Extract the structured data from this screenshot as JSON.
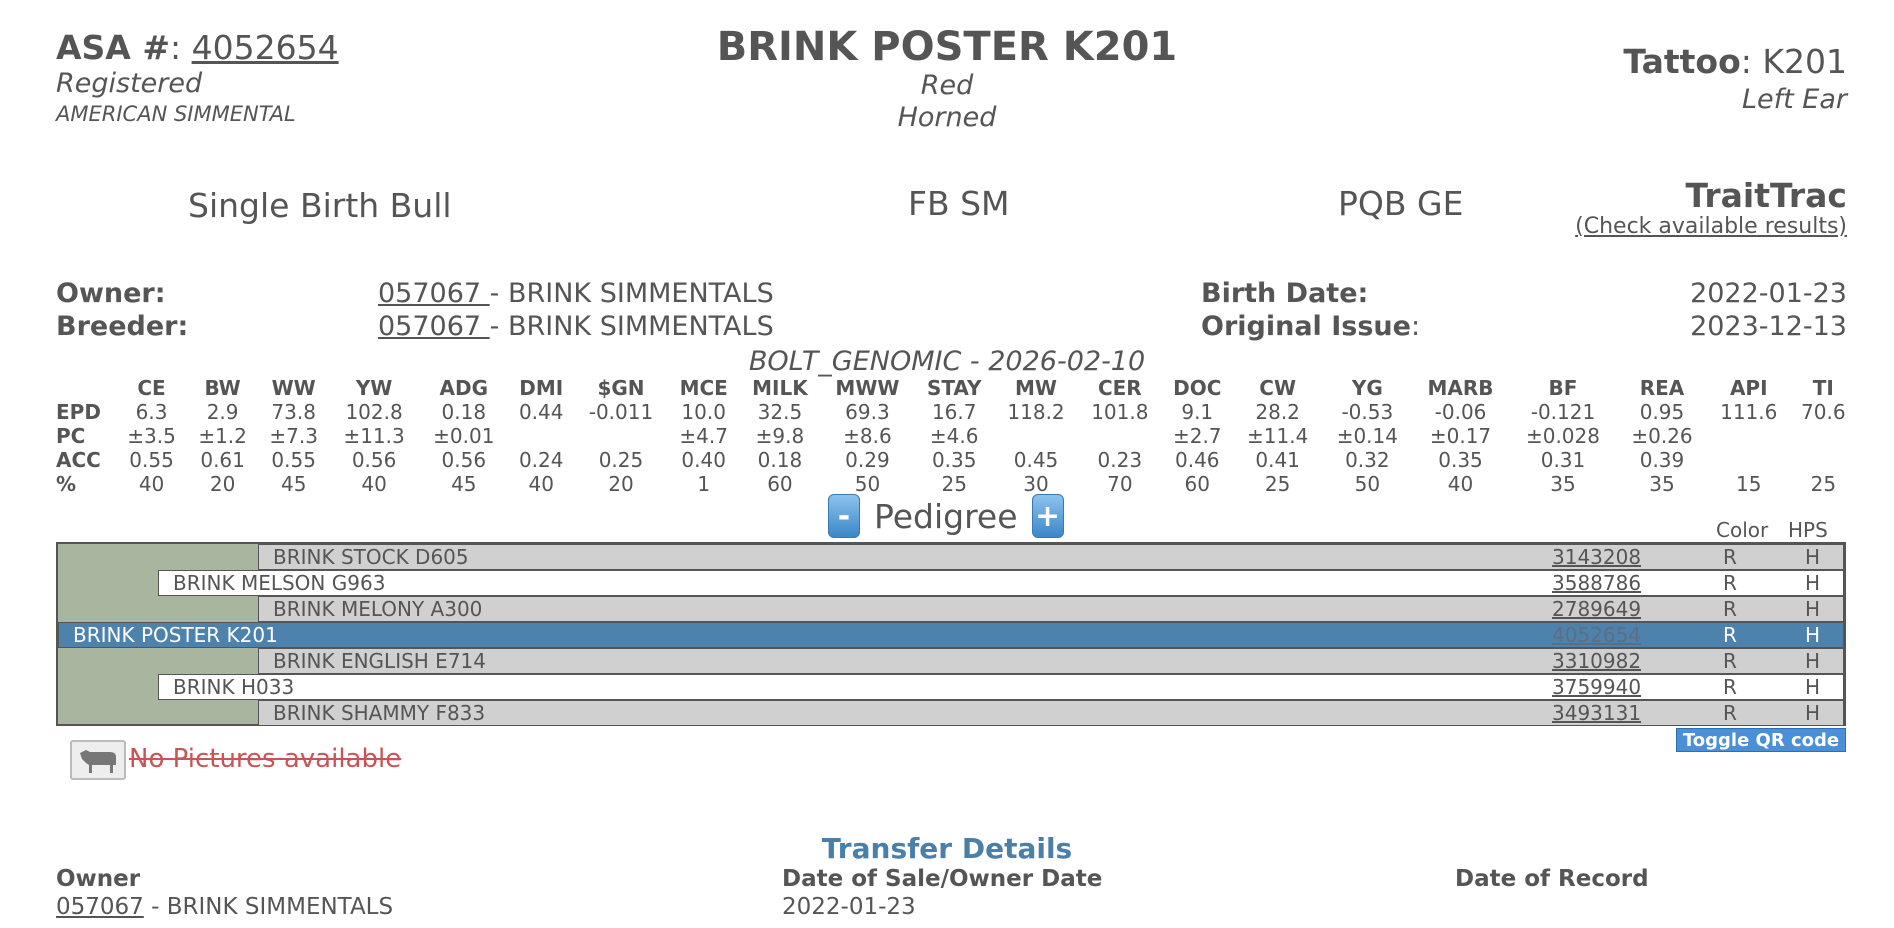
{
  "header": {
    "asa_label": "ASA #",
    "asa_colon": ":",
    "asa_number": "4052654",
    "status": "Registered",
    "breed": "AMERICAN SIMMENTAL",
    "animal_name": "BRINK POSTER K201",
    "color": "Red",
    "horn_status": "Horned",
    "tattoo_label": "Tattoo",
    "tattoo_value": ": K201",
    "tattoo_location": "Left Ear"
  },
  "summary": {
    "birth_type": "Single Birth Bull",
    "breed_code": "FB SM",
    "genomic": "PQB GE",
    "traittrac_title": "TraitTrac",
    "traittrac_link": "(Check available results)"
  },
  "parties": {
    "owner_label": "Owner:",
    "owner_id": "057067 ",
    "owner_name": "- BRINK SIMMENTALS",
    "breeder_label": "Breeder:",
    "breeder_id": "057067 ",
    "breeder_name": "- BRINK SIMMENTALS",
    "birth_date_label": "Birth Date:",
    "birth_date": "2022-01-23",
    "original_issue_label": "Original Issue",
    "original_issue_colon": ":",
    "original_issue": "2023-12-13"
  },
  "evaluation": "BOLT_GENOMIC - 2026-02-10",
  "epd_table": {
    "columns": [
      "CE",
      "BW",
      "WW",
      "YW",
      "ADG",
      "DMI",
      "$GN",
      "MCE",
      "MILK",
      "MWW",
      "STAY",
      "MW",
      "CER",
      "DOC",
      "CW",
      "YG",
      "MARB",
      "BF",
      "REA",
      "API",
      "TI"
    ],
    "rows": [
      {
        "label": "EPD",
        "values": [
          "6.3",
          "2.9",
          "73.8",
          "102.8",
          "0.18",
          "0.44",
          "-0.011",
          "10.0",
          "32.5",
          "69.3",
          "16.7",
          "118.2",
          "101.8",
          "9.1",
          "28.2",
          "-0.53",
          "-0.06",
          "-0.121",
          "0.95",
          "111.6",
          "70.6"
        ]
      },
      {
        "label": "PC",
        "values": [
          "±3.5",
          "±1.2",
          "±7.3",
          "±11.3",
          "±0.01",
          "",
          "",
          "±4.7",
          "±9.8",
          "±8.6",
          "±4.6",
          "",
          "",
          "±2.7",
          "±11.4",
          "±0.14",
          "±0.17",
          "±0.028",
          "±0.26",
          "",
          ""
        ]
      },
      {
        "label": "ACC",
        "values": [
          "0.55",
          "0.61",
          "0.55",
          "0.56",
          "0.56",
          "0.24",
          "0.25",
          "0.40",
          "0.18",
          "0.29",
          "0.35",
          "0.45",
          "0.23",
          "0.46",
          "0.41",
          "0.32",
          "0.35",
          "0.31",
          "0.39",
          "",
          ""
        ]
      },
      {
        "label": "%",
        "values": [
          "40",
          "20",
          "45",
          "40",
          "45",
          "40",
          "20",
          "1",
          "60",
          "50",
          "25",
          "30",
          "70",
          "60",
          "25",
          "50",
          "40",
          "35",
          "35",
          "15",
          "25"
        ]
      }
    ]
  },
  "pedigree": {
    "minus_label": "-",
    "title": "Pedigree",
    "plus_label": "+",
    "color_header": "Color",
    "hps_header": "HPS",
    "rows": [
      {
        "name": "BRINK STOCK D605",
        "reg": "3143208",
        "color": "R",
        "hps": "H"
      },
      {
        "name": "BRINK MELSON G963",
        "reg": "3588786",
        "color": "R",
        "hps": "H"
      },
      {
        "name": "BRINK MELONY A300",
        "reg": "2789649",
        "color": "R",
        "hps": "H"
      },
      {
        "name": "BRINK POSTER K201",
        "reg": "4052654",
        "color": "R",
        "hps": "H"
      },
      {
        "name": "BRINK ENGLISH E714",
        "reg": "3310982",
        "color": "R",
        "hps": "H"
      },
      {
        "name": "BRINK H033",
        "reg": "3759940",
        "color": "R",
        "hps": "H"
      },
      {
        "name": "BRINK SHAMMY F833",
        "reg": "3493131",
        "color": "R",
        "hps": "H"
      }
    ]
  },
  "pictures": {
    "no_pictures": "No Pictures available",
    "toggle_qr": "Toggle QR code"
  },
  "transfer": {
    "title": "Transfer Details",
    "owner_header": "Owner",
    "owner_id": "057067",
    "owner_name": " - BRINK SIMMENTALS",
    "sale_date_header": "Date of Sale/Owner Date",
    "sale_date": "2022-01-23",
    "record_date_header": "Date of Record"
  }
}
